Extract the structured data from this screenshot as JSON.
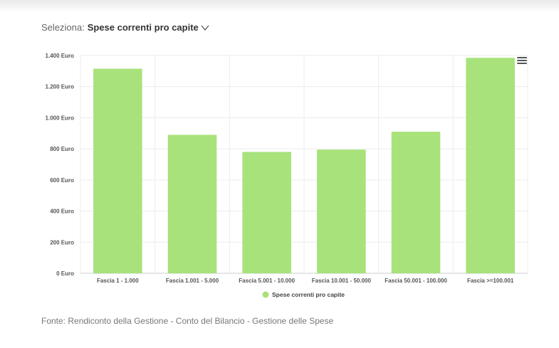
{
  "selector": {
    "label": "Seleziona:",
    "value": "Spese correnti pro capite"
  },
  "chart_data": {
    "type": "bar",
    "title": "",
    "xlabel": "",
    "ylabel": "",
    "ylim": [
      0,
      1400
    ],
    "y_ticks": [
      0,
      200,
      400,
      600,
      800,
      1000,
      1200,
      1400
    ],
    "y_tick_labels": [
      "0 Euro",
      "200 Euro",
      "400 Euro",
      "600 Euro",
      "800 Euro",
      "1.000 Euro",
      "1.200 Euro",
      "1.400 Euro"
    ],
    "categories": [
      "Fascia 1 - 1.000",
      "Fascia 1.001 - 5.000",
      "Fascia 5.001 - 10.000",
      "Fascia 10.001 - 50.000",
      "Fascia 50.001 - 100.000",
      "Fascia >=100.001"
    ],
    "series": [
      {
        "name": "Spese correnti pro capite",
        "color": "#a8e27a",
        "values": [
          1315,
          890,
          780,
          795,
          910,
          1385
        ]
      }
    ],
    "grid": true,
    "legend_position": "bottom-center"
  },
  "footer": {
    "source": "Fonte: Rendiconto della Gestione - Conto del Bilancio - Gestione delle Spese"
  },
  "icons": {
    "menu": "hamburger-menu-icon",
    "dropdown": "chevron-down-icon"
  }
}
